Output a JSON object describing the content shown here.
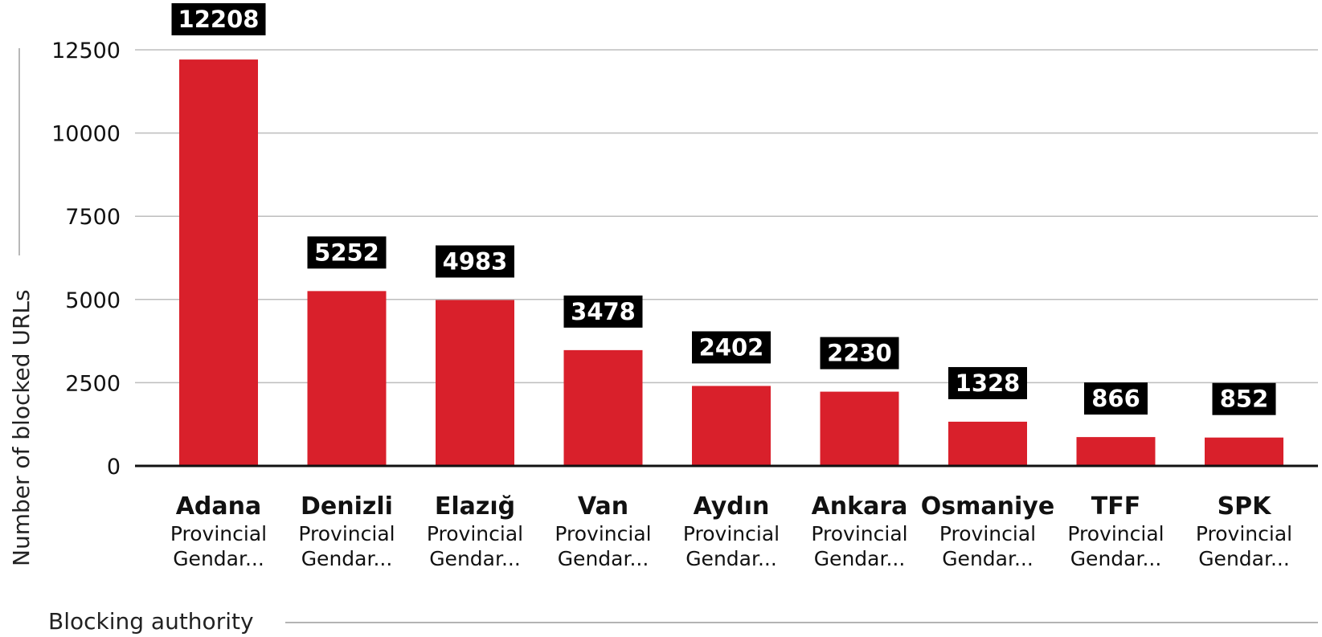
{
  "chart_data": {
    "type": "bar",
    "categories": [
      {
        "name": "Adana",
        "sub1": "Provincial",
        "sub2": "Gendar..."
      },
      {
        "name": "Denizli",
        "sub1": "Provincial",
        "sub2": "Gendar..."
      },
      {
        "name": "Elazığ",
        "sub1": "Provincial",
        "sub2": "Gendar..."
      },
      {
        "name": "Van",
        "sub1": "Provincial",
        "sub2": "Gendar..."
      },
      {
        "name": "Aydın",
        "sub1": "Provincial",
        "sub2": "Gendar..."
      },
      {
        "name": "Ankara",
        "sub1": "Provincial",
        "sub2": "Gendar..."
      },
      {
        "name": "Osmaniye",
        "sub1": "Provincial",
        "sub2": "Gendar..."
      },
      {
        "name": "TFF",
        "sub1": "Provincial",
        "sub2": "Gendar..."
      },
      {
        "name": "SPK",
        "sub1": "Provincial",
        "sub2": "Gendar..."
      }
    ],
    "values": [
      12208,
      5252,
      4983,
      3478,
      2402,
      2230,
      1328,
      866,
      852
    ],
    "value_labels": [
      "12208",
      "5252",
      "4983",
      "3478",
      "2402",
      "2230",
      "1328",
      "866",
      "852"
    ],
    "ylabel": "Number of blocked URLs",
    "xlabel": "Blocking authority",
    "ylim": [
      0,
      12500
    ],
    "yticks": [
      0,
      2500,
      5000,
      7500,
      10000,
      12500
    ],
    "ytick_labels": [
      "0",
      "2500",
      "5000",
      "7500",
      "10000",
      "12500"
    ],
    "grid": true,
    "bar_color": "#d9202b",
    "label_bg_color": "#000000",
    "label_text_color": "#ffffff"
  }
}
